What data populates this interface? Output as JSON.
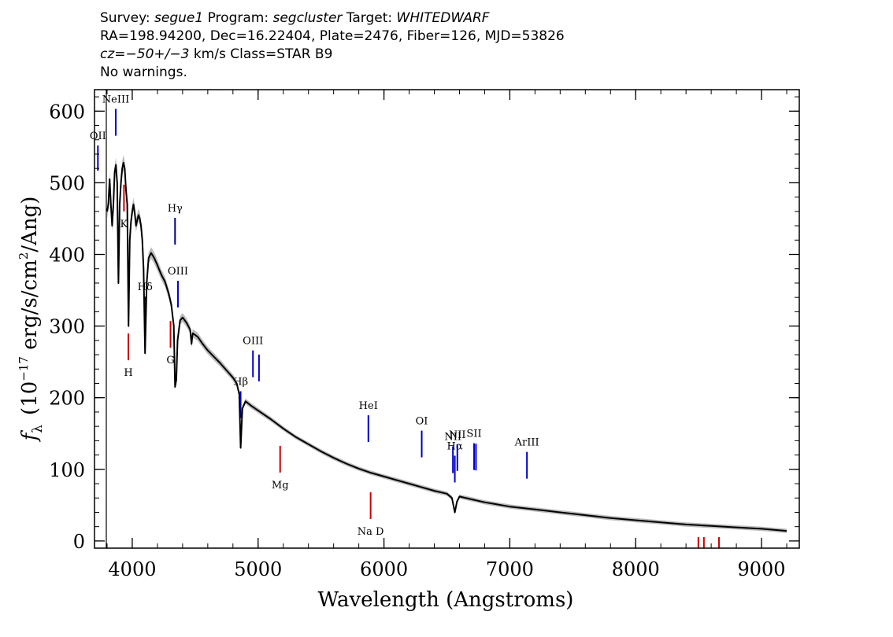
{
  "header": {
    "survey_label": "Survey:",
    "survey": "segue1",
    "program_label": "Program:",
    "program": "segcluster",
    "target_label": "Target:",
    "target": "WHITEDWARF",
    "line2": "RA=198.94200, Dec=16.22404, Plate=2476, Fiber=126, MJD=53826",
    "cz_label": "cz=",
    "cz_value": "−50+/−3",
    "cz_rest": " km/s Class=STAR B9",
    "line4": "No warnings."
  },
  "chart_data": {
    "type": "line",
    "title": "",
    "xlabel": "Wavelength (Angstroms)",
    "ylabel": "fλ (10⁻¹⁷ erg/s/cm²/Ang)",
    "ylabel_parts": {
      "f": "f",
      "sub": "λ",
      "open": "(10",
      "exp": "−17",
      "mid": " erg/s/cm",
      "sq": "2",
      "close": "/Ang)"
    },
    "xlim": [
      3700,
      9300
    ],
    "ylim": [
      -10,
      630
    ],
    "x_ticks": [
      4000,
      5000,
      6000,
      7000,
      8000,
      9000
    ],
    "y_ticks": [
      0,
      100,
      200,
      300,
      400,
      500,
      600
    ],
    "x_minor_step": 200,
    "y_minor_step": 20,
    "series": [
      {
        "color": "#000000",
        "error_color": "#b0b0b0",
        "points": [
          [
            3800,
            460
          ],
          [
            3810,
            470
          ],
          [
            3820,
            505
          ],
          [
            3830,
            470
          ],
          [
            3840,
            440
          ],
          [
            3850,
            470
          ],
          [
            3860,
            515
          ],
          [
            3870,
            525
          ],
          [
            3880,
            500
          ],
          [
            3890,
            360
          ],
          [
            3900,
            470
          ],
          [
            3910,
            500
          ],
          [
            3920,
            520
          ],
          [
            3930,
            528
          ],
          [
            3940,
            520
          ],
          [
            3950,
            490
          ],
          [
            3960,
            470
          ],
          [
            3970,
            300
          ],
          [
            3980,
            420
          ],
          [
            3990,
            445
          ],
          [
            4000,
            460
          ],
          [
            4010,
            470
          ],
          [
            4020,
            458
          ],
          [
            4030,
            440
          ],
          [
            4040,
            448
          ],
          [
            4050,
            455
          ],
          [
            4060,
            450
          ],
          [
            4070,
            440
          ],
          [
            4080,
            420
          ],
          [
            4090,
            380
          ],
          [
            4102,
            262
          ],
          [
            4115,
            360
          ],
          [
            4130,
            395
          ],
          [
            4150,
            402
          ],
          [
            4175,
            395
          ],
          [
            4200,
            385
          ],
          [
            4230,
            372
          ],
          [
            4260,
            362
          ],
          [
            4290,
            345
          ],
          [
            4310,
            330
          ],
          [
            4330,
            300
          ],
          [
            4340,
            215
          ],
          [
            4350,
            225
          ],
          [
            4360,
            280
          ],
          [
            4380,
            308
          ],
          [
            4400,
            312
          ],
          [
            4430,
            305
          ],
          [
            4460,
            295
          ],
          [
            4471,
            275
          ],
          [
            4480,
            290
          ],
          [
            4520,
            285
          ],
          [
            4560,
            275
          ],
          [
            4600,
            266
          ],
          [
            4650,
            257
          ],
          [
            4700,
            248
          ],
          [
            4750,
            238
          ],
          [
            4800,
            228
          ],
          [
            4830,
            220
          ],
          [
            4850,
            205
          ],
          [
            4861,
            130
          ],
          [
            4875,
            185
          ],
          [
            4900,
            195
          ],
          [
            4950,
            188
          ],
          [
            5000,
            182
          ],
          [
            5100,
            170
          ],
          [
            5200,
            157
          ],
          [
            5300,
            145
          ],
          [
            5400,
            135
          ],
          [
            5500,
            125
          ],
          [
            5600,
            116
          ],
          [
            5700,
            108
          ],
          [
            5800,
            101
          ],
          [
            5900,
            95
          ],
          [
            6000,
            90
          ],
          [
            6100,
            85
          ],
          [
            6200,
            80
          ],
          [
            6300,
            75
          ],
          [
            6400,
            70
          ],
          [
            6500,
            66
          ],
          [
            6540,
            60
          ],
          [
            6563,
            40
          ],
          [
            6580,
            55
          ],
          [
            6600,
            62
          ],
          [
            6700,
            58
          ],
          [
            6800,
            54
          ],
          [
            6900,
            51
          ],
          [
            7000,
            48
          ],
          [
            7200,
            44
          ],
          [
            7400,
            40
          ],
          [
            7600,
            36
          ],
          [
            7800,
            32
          ],
          [
            8000,
            29
          ],
          [
            8200,
            26
          ],
          [
            8400,
            23
          ],
          [
            8600,
            21
          ],
          [
            8800,
            19
          ],
          [
            9000,
            17
          ],
          [
            9200,
            14
          ]
        ]
      }
    ],
    "emission_lines": [
      {
        "label": "OII",
        "x": 3727,
        "color": "#0000cc"
      },
      {
        "label": "NeIII",
        "x": 3869,
        "color": "#0000cc"
      },
      {
        "label": "Hδ",
        "x": 4102,
        "color": "#000080"
      },
      {
        "label": "Hγ",
        "x": 4340,
        "color": "#000080"
      },
      {
        "label": "OIII",
        "x": 4363,
        "color": "#0000cc"
      },
      {
        "label": "Hβ",
        "x": 4861,
        "color": "#0000cc"
      },
      {
        "label": "OIII",
        "x": 4959,
        "color": "#0000cc"
      },
      {
        "label": "",
        "x": 5007,
        "color": "#0000cc"
      },
      {
        "label": "HeI",
        "x": 5876,
        "color": "#0000cc"
      },
      {
        "label": "OI",
        "x": 6300,
        "color": "#0000cc"
      },
      {
        "label": "NII",
        "x": 6548,
        "color": "#0000cc"
      },
      {
        "label": "Hα",
        "x": 6563,
        "color": "#0000cc"
      },
      {
        "label": "NII",
        "x": 6583,
        "color": "#0000cc"
      },
      {
        "label": "SII",
        "x": 6716,
        "color": "#0000cc"
      },
      {
        "label": "",
        "x": 6731,
        "color": "#0000cc"
      },
      {
        "label": "ArIII",
        "x": 7136,
        "color": "#0000cc"
      }
    ],
    "absorption_lines": [
      {
        "label": "K",
        "x": 3934,
        "color": "#cc0000"
      },
      {
        "label": "H",
        "x": 3969,
        "color": "#cc0000"
      },
      {
        "label": "G",
        "x": 4304,
        "color": "#cc0000"
      },
      {
        "label": "Mg",
        "x": 5175,
        "color": "#cc0000"
      },
      {
        "label": "Na  D",
        "x": 5894,
        "color": "#cc0000"
      },
      {
        "label": "",
        "x": 8498,
        "color": "#cc0000"
      },
      {
        "label": "",
        "x": 8542,
        "color": "#cc0000"
      },
      {
        "label": "",
        "x": 8662,
        "color": "#cc0000"
      }
    ]
  }
}
